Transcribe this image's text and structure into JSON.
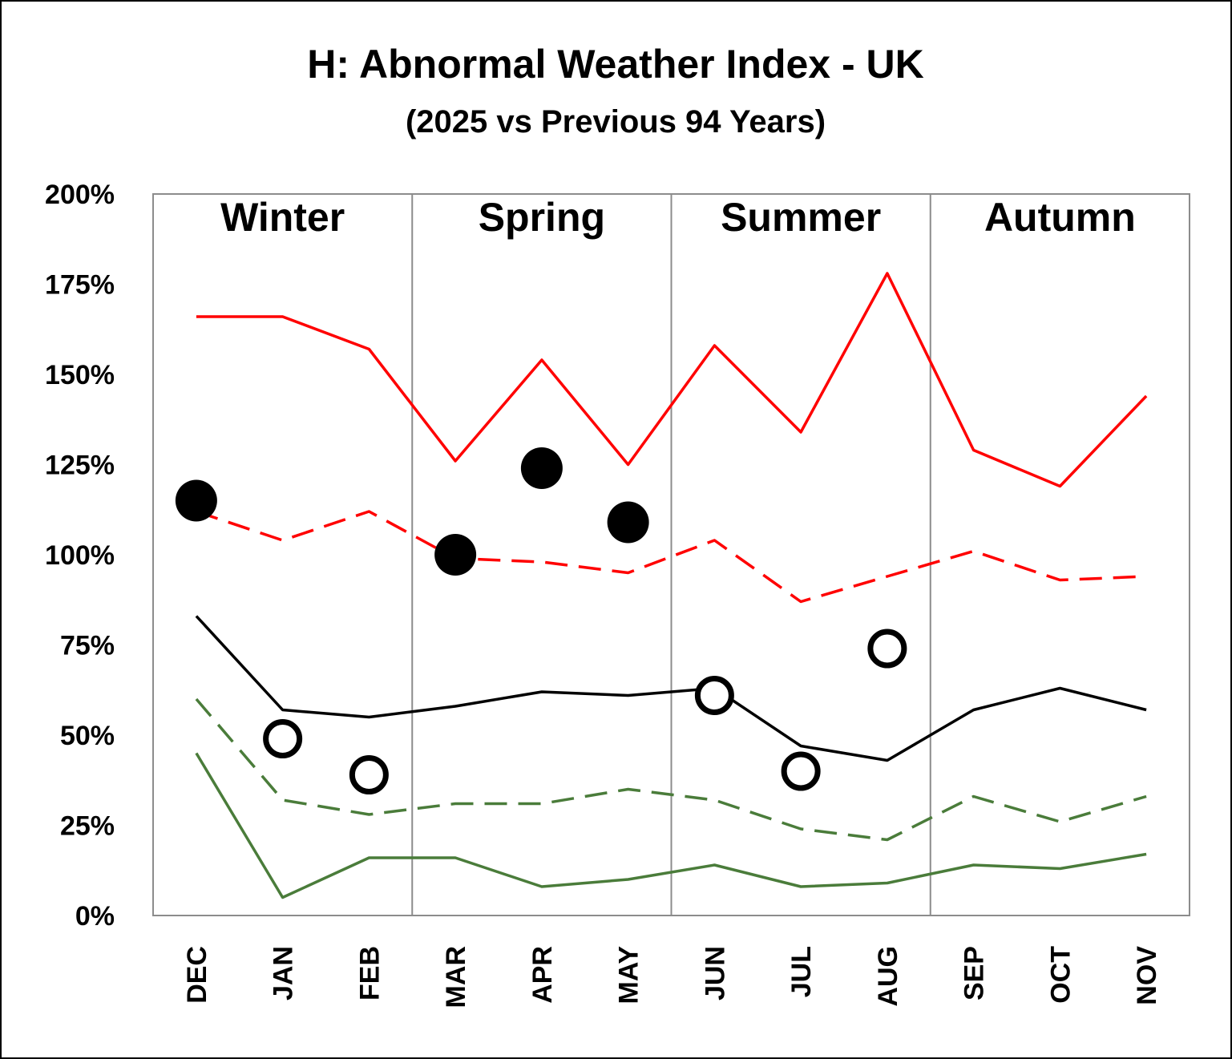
{
  "chart_data": {
    "type": "line",
    "title": "H: Abnormal Weather Index - UK",
    "subtitle": "(2025 vs Previous 94 Years)",
    "categories": [
      "DEC",
      "JAN",
      "FEB",
      "MAR",
      "APR",
      "MAY",
      "JUN",
      "JUL",
      "AUG",
      "SEP",
      "OCT",
      "NOV"
    ],
    "ylim": [
      0,
      200
    ],
    "yticks": [
      "0%",
      "25%",
      "50%",
      "75%",
      "100%",
      "125%",
      "150%",
      "175%",
      "200%"
    ],
    "seasons": [
      "Winter",
      "Spring",
      "Summer",
      "Autumn"
    ],
    "series": [
      {
        "color": "#ff0000",
        "style": "solid",
        "values": [
          166,
          166,
          157,
          126,
          154,
          125,
          158,
          134,
          178,
          129,
          119,
          144
        ]
      },
      {
        "color": "#ff0000",
        "style": "dashed",
        "values": [
          112,
          104,
          112,
          99,
          98,
          95,
          104,
          87,
          94,
          101,
          93,
          94
        ]
      },
      {
        "color": "#000000",
        "style": "solid",
        "values": [
          83,
          57,
          55,
          58,
          62,
          61,
          63,
          47,
          43,
          57,
          63,
          57
        ]
      },
      {
        "color": "#4a7c3a",
        "style": "dashed",
        "values": [
          60,
          32,
          28,
          31,
          31,
          35,
          32,
          24,
          21,
          33,
          26,
          33
        ]
      },
      {
        "color": "#4a7c3a",
        "style": "solid",
        "values": [
          45,
          5,
          16,
          16,
          8,
          10,
          14,
          8,
          9,
          14,
          13,
          17
        ]
      }
    ],
    "points_filled": [
      {
        "x": "DEC",
        "y": 115
      },
      {
        "x": "MAR",
        "y": 100
      },
      {
        "x": "APR",
        "y": 124
      },
      {
        "x": "MAY",
        "y": 109
      }
    ],
    "points_open": [
      {
        "x": "JAN",
        "y": 49
      },
      {
        "x": "FEB",
        "y": 39
      },
      {
        "x": "JUN",
        "y": 61
      },
      {
        "x": "JUL",
        "y": 40
      },
      {
        "x": "AUG",
        "y": 74
      }
    ],
    "grid": false,
    "legend": "none"
  }
}
